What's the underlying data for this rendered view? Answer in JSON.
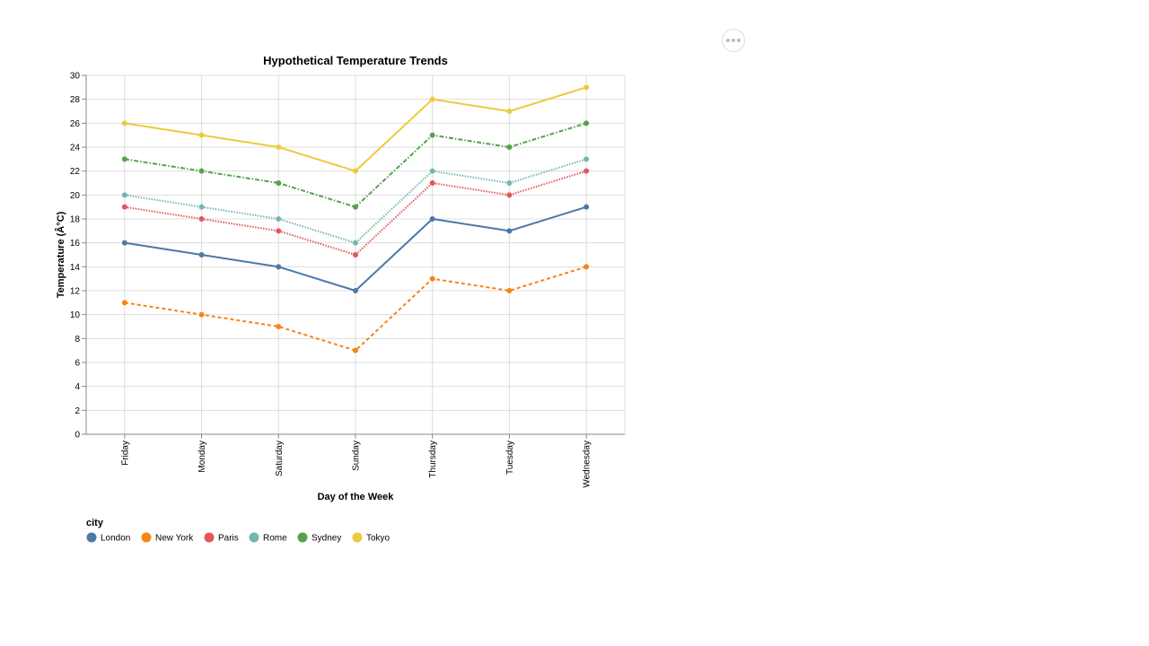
{
  "menu": {
    "icon": "ellipsis-icon"
  },
  "chart_data": {
    "type": "line",
    "title": "Hypothetical Temperature Trends",
    "xlabel": "Day of the Week",
    "ylabel": "Temperature (Â°C)",
    "categories": [
      "Friday",
      "Monday",
      "Saturday",
      "Sunday",
      "Thursday",
      "Tuesday",
      "Wednesday"
    ],
    "ylim": [
      0,
      30
    ],
    "yticks": [
      0,
      2,
      4,
      6,
      8,
      10,
      12,
      14,
      16,
      18,
      20,
      22,
      24,
      26,
      28,
      30
    ],
    "grid": true,
    "legend": {
      "title": "city",
      "position": "bottom-left"
    },
    "series": [
      {
        "name": "London",
        "color": "#4c78a8",
        "dash": "solid",
        "values": [
          16,
          15,
          14,
          12,
          18,
          17,
          19
        ]
      },
      {
        "name": "New York",
        "color": "#f58518",
        "dash": "dashed",
        "values": [
          11,
          10,
          9,
          7,
          13,
          12,
          14
        ]
      },
      {
        "name": "Paris",
        "color": "#e45756",
        "dash": "dotted",
        "values": [
          19,
          18,
          17,
          15,
          21,
          20,
          22
        ]
      },
      {
        "name": "Rome",
        "color": "#72b7b2",
        "dash": "dotted",
        "values": [
          20,
          19,
          18,
          16,
          22,
          21,
          23
        ]
      },
      {
        "name": "Sydney",
        "color": "#54a24b",
        "dash": "dash-dot",
        "values": [
          23,
          22,
          21,
          19,
          25,
          24,
          26
        ]
      },
      {
        "name": "Tokyo",
        "color": "#eeca3b",
        "dash": "solid",
        "values": [
          26,
          25,
          24,
          22,
          28,
          27,
          29
        ]
      }
    ]
  }
}
